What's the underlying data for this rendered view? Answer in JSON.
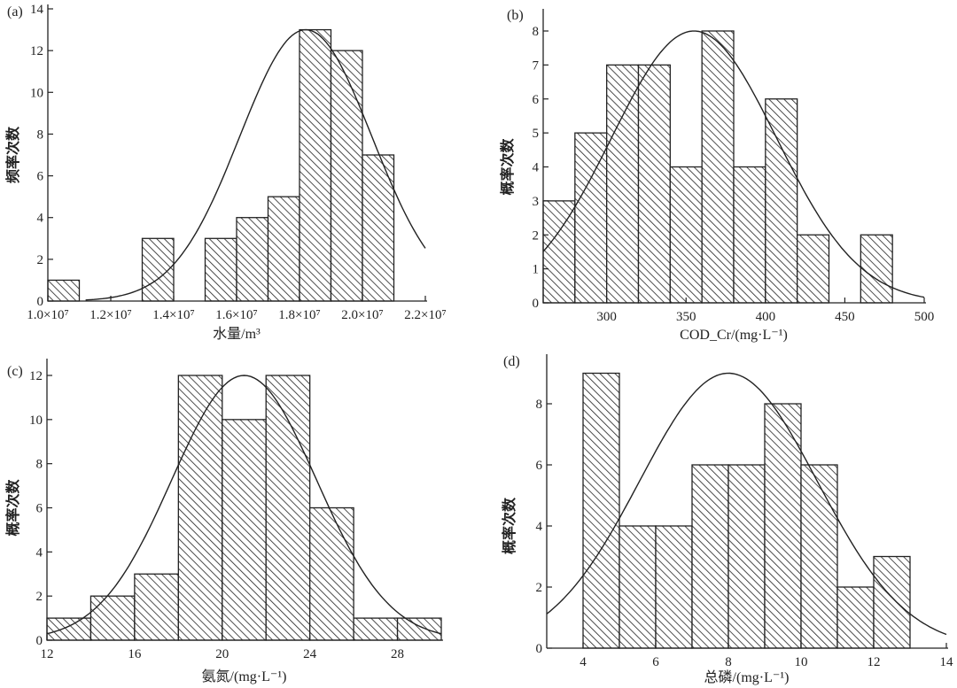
{
  "chart_data": [
    {
      "type": "bar",
      "panel": "(a)",
      "title": "",
      "xlabel": "水量/m³",
      "ylabel": "频率次数",
      "bin_width": 1000000,
      "bins": [
        {
          "start": 10000000,
          "value": 1
        },
        {
          "start": 13000000,
          "value": 3
        },
        {
          "start": 15000000,
          "value": 3
        },
        {
          "start": 16000000,
          "value": 4
        },
        {
          "start": 17000000,
          "value": 5
        },
        {
          "start": 18000000,
          "value": 13
        },
        {
          "start": 19000000,
          "value": 12
        },
        {
          "start": 20000000,
          "value": 7
        }
      ],
      "xlim": [
        10000000,
        22000000
      ],
      "ylim": [
        0,
        14
      ],
      "xticks": [
        10000000,
        12000000,
        14000000,
        16000000,
        18000000,
        20000000,
        22000000
      ],
      "xtick_labels": [
        "1.0×10⁷",
        "1.2×10⁷",
        "1.4×10⁷",
        "1.6×10⁷",
        "1.8×10⁷",
        "2.0×10⁷",
        "2.2×10⁷"
      ],
      "yticks": [
        0,
        2,
        4,
        6,
        8,
        10,
        12,
        14
      ],
      "ytick_labels": [
        "0",
        "2",
        "4",
        "6",
        "8",
        "10",
        "12",
        "14"
      ],
      "normal_curve": {
        "peak": 13,
        "mean": 18200000,
        "sd": 2100000,
        "from": 11200000,
        "to": 22000000
      }
    },
    {
      "type": "bar",
      "panel": "(b)",
      "title": "",
      "xlabel": "COD_Cr/(mg·L⁻¹)",
      "xlabel_main": "COD",
      "xlabel_sub": "Cr",
      "xlabel_rest": "/(mg·L⁻¹)",
      "ylabel": "概率次数",
      "bin_width": 20,
      "bins": [
        {
          "start": 260,
          "value": 3
        },
        {
          "start": 280,
          "value": 5
        },
        {
          "start": 300,
          "value": 7
        },
        {
          "start": 320,
          "value": 7
        },
        {
          "start": 340,
          "value": 4
        },
        {
          "start": 360,
          "value": 8
        },
        {
          "start": 380,
          "value": 4
        },
        {
          "start": 400,
          "value": 6
        },
        {
          "start": 420,
          "value": 2
        },
        {
          "start": 460,
          "value": 2
        }
      ],
      "xlim": [
        260,
        500
      ],
      "ylim": [
        0,
        8.6
      ],
      "xticks": [
        300,
        350,
        400,
        450,
        500
      ],
      "xtick_labels": [
        "300",
        "350",
        "400",
        "450",
        "500"
      ],
      "yticks": [
        0,
        1,
        2,
        3,
        4,
        5,
        6,
        7,
        8
      ],
      "ytick_labels": [
        "0",
        "1",
        "2",
        "3",
        "4",
        "5",
        "6",
        "7",
        "8"
      ],
      "normal_curve": {
        "peak": 8,
        "mean": 355,
        "sd": 52,
        "from": 260,
        "to": 500
      }
    },
    {
      "type": "bar",
      "panel": "(c)",
      "title": "",
      "xlabel": "氨氮/(mg·L⁻¹)",
      "ylabel": "概率次数",
      "bin_width": 2,
      "bins": [
        {
          "start": 12,
          "value": 1
        },
        {
          "start": 14,
          "value": 2
        },
        {
          "start": 16,
          "value": 3
        },
        {
          "start": 18,
          "value": 12
        },
        {
          "start": 20,
          "value": 10
        },
        {
          "start": 22,
          "value": 12
        },
        {
          "start": 24,
          "value": 6
        },
        {
          "start": 26,
          "value": 1
        },
        {
          "start": 28,
          "value": 1
        }
      ],
      "xlim": [
        12,
        30
      ],
      "ylim": [
        0,
        12.7
      ],
      "xticks": [
        12,
        16,
        20,
        24,
        28
      ],
      "xtick_labels": [
        "12",
        "16",
        "20",
        "24",
        "28"
      ],
      "yticks": [
        0,
        2,
        4,
        6,
        8,
        10,
        12
      ],
      "ytick_labels": [
        "0",
        "2",
        "4",
        "6",
        "8",
        "10",
        "12"
      ],
      "normal_curve": {
        "peak": 12,
        "mean": 21,
        "sd": 3.3,
        "from": 12,
        "to": 30
      }
    },
    {
      "type": "bar",
      "panel": "(d)",
      "title": "",
      "xlabel": "总磷/(mg·L⁻¹)",
      "ylabel": "概率次数",
      "bin_width": 1,
      "bins": [
        {
          "start": 4,
          "value": 9
        },
        {
          "start": 5,
          "value": 4
        },
        {
          "start": 6,
          "value": 4
        },
        {
          "start": 7,
          "value": 6
        },
        {
          "start": 8,
          "value": 6
        },
        {
          "start": 9,
          "value": 8
        },
        {
          "start": 10,
          "value": 6
        },
        {
          "start": 11,
          "value": 2
        },
        {
          "start": 12,
          "value": 3
        }
      ],
      "xlim": [
        3,
        14
      ],
      "ylim": [
        0,
        9.6
      ],
      "xticks": [
        4,
        6,
        8,
        10,
        12,
        14
      ],
      "xtick_labels": [
        "4",
        "6",
        "8",
        "10",
        "12",
        "14"
      ],
      "yticks": [
        0,
        2,
        4,
        6,
        8
      ],
      "ytick_labels": [
        "0",
        "2",
        "4",
        "6",
        "8"
      ],
      "normal_curve": {
        "peak": 9,
        "mean": 8,
        "sd": 2.45,
        "from": 3,
        "to": 14
      }
    }
  ]
}
